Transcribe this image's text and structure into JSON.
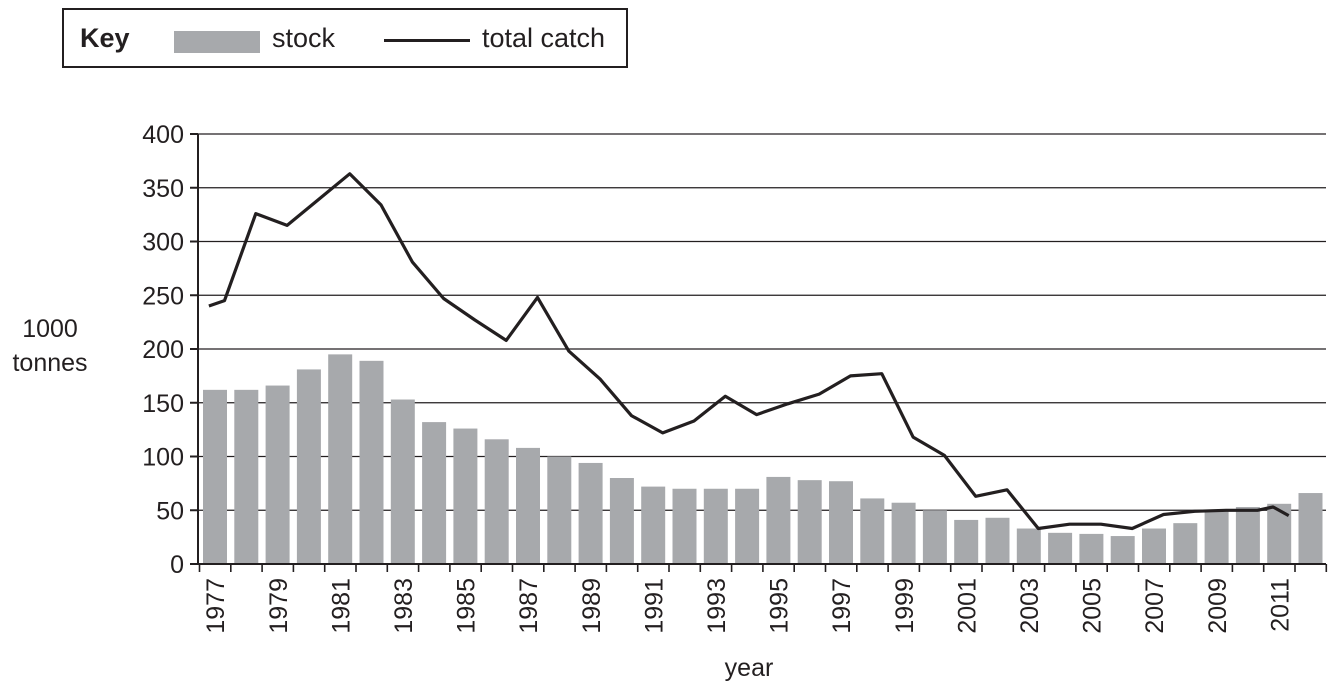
{
  "legend": {
    "title": "Key",
    "stock_label": "stock",
    "catch_label": "total catch"
  },
  "chart_data": {
    "type": "bar",
    "xlabel": "year",
    "ylabel_lines": [
      "1000",
      "tonnes"
    ],
    "ylim": [
      0,
      400
    ],
    "yticks": [
      0,
      50,
      100,
      150,
      200,
      250,
      300,
      350,
      400
    ],
    "grid": true,
    "legend_position": "top-left",
    "categories": [
      "1977",
      "1978",
      "1979",
      "1980",
      "1981",
      "1982",
      "1983",
      "1984",
      "1985",
      "1986",
      "1987",
      "1988",
      "1989",
      "1990",
      "1991",
      "1992",
      "1993",
      "1994",
      "1995",
      "1996",
      "1997",
      "1998",
      "1999",
      "2000",
      "2001",
      "2002",
      "2003",
      "2004",
      "2005",
      "2006",
      "2007",
      "2008",
      "2009",
      "2010",
      "2011",
      "2012"
    ],
    "tick_labels": [
      "1977",
      "1979",
      "1981",
      "1983",
      "1985",
      "1987",
      "1989",
      "1991",
      "1993",
      "1995",
      "1997",
      "1999",
      "2001",
      "2003",
      "2005",
      "2007",
      "2009",
      "2011"
    ],
    "series": [
      {
        "name": "stock",
        "type": "bar",
        "color": "#a7a9ac",
        "values": [
          162,
          162,
          166,
          181,
          195,
          189,
          153,
          132,
          126,
          116,
          108,
          100,
          94,
          80,
          72,
          70,
          70,
          70,
          81,
          78,
          77,
          61,
          57,
          50,
          41,
          43,
          33,
          29,
          28,
          26,
          33,
          38,
          49,
          53,
          56,
          66
        ]
      },
      {
        "name": "total catch",
        "type": "line",
        "color": "#231f20",
        "x": [
          1976.8,
          1977.3,
          1978.3,
          1979.3,
          1980.3,
          1981.3,
          1982.3,
          1983.3,
          1984.3,
          1985.3,
          1986.3,
          1987.3,
          1988.3,
          1989.3,
          1990.3,
          1991.3,
          1992.3,
          1993.3,
          1994.3,
          1995.3,
          1996.3,
          1997.3,
          1998.3,
          1999.3,
          2000.3,
          2001.3,
          2002.3,
          2003.3,
          2004.3,
          2005.3,
          2006.3,
          2007.3,
          2008.3,
          2009.3,
          2010.3,
          2010.8,
          2011.3
        ],
        "values": [
          240,
          245,
          326,
          315,
          339,
          363,
          334,
          281,
          247,
          227,
          208,
          248,
          198,
          172,
          138,
          122,
          133,
          156,
          139,
          149,
          158,
          175,
          177,
          118,
          101,
          63,
          69,
          33,
          37,
          37,
          33,
          46,
          49,
          50,
          50,
          53,
          45
        ]
      }
    ]
  }
}
